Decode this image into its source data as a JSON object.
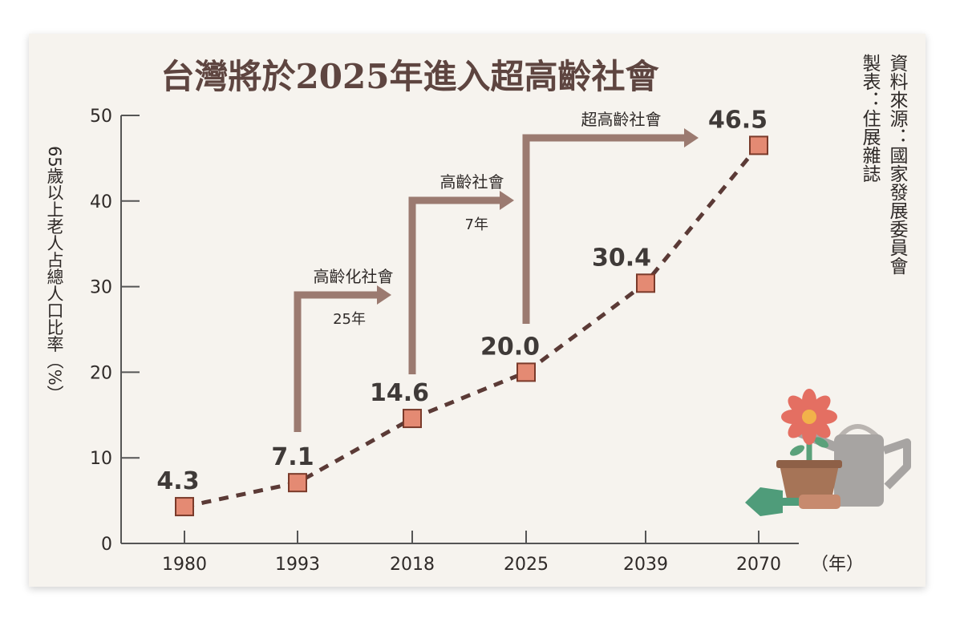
{
  "title": "台灣將於2025年進入超高齡社會",
  "source_note": {
    "source": "資料來源：國家發展委員會",
    "maker": "製表：住展雜誌"
  },
  "chart_data": {
    "type": "line",
    "title": "台灣將於2025年進入超高齡社會",
    "xlabel": "（年）",
    "ylabel": "65歲以上老人占總人口比率（%）",
    "categories": [
      "1980",
      "1993",
      "2018",
      "2025",
      "2039",
      "2070"
    ],
    "values": [
      4.3,
      7.1,
      14.6,
      20.0,
      30.4,
      46.5
    ],
    "value_labels": [
      "4.3",
      "7.1",
      "14.6",
      "20.0",
      "30.4",
      "46.5"
    ],
    "ylim": [
      0,
      50
    ],
    "yticks": [
      0,
      10,
      20,
      30,
      40,
      50
    ],
    "annotations": [
      {
        "from": "1993",
        "to": "2018",
        "stage": "高齡化社會",
        "duration": "25年"
      },
      {
        "from": "2018",
        "to": "2025",
        "stage": "高齡社會",
        "duration": "7年"
      },
      {
        "from": "2025",
        "to": "2070",
        "stage": "超高齡社會",
        "duration": ""
      }
    ]
  },
  "colors": {
    "background": "#f6f3ee",
    "title": "#5e4540",
    "line": "#5b3a36",
    "marker_fill": "#e48a73",
    "marker_stroke": "#7a3a2a",
    "arrow": "#9b7a70",
    "axis": "#555555",
    "text": "#2f2a28"
  }
}
